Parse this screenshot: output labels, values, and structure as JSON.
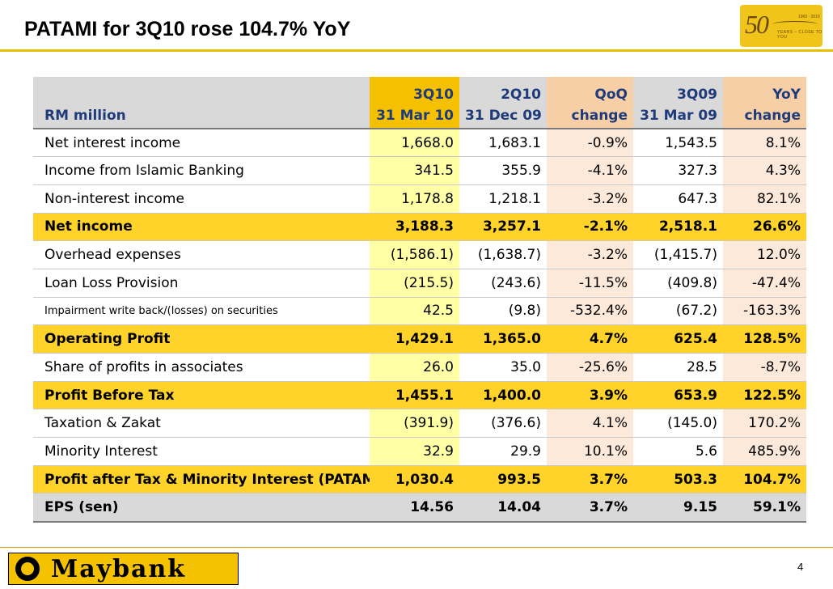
{
  "slide": {
    "title": "PATAMI for 3Q10 rose 104.7% YoY",
    "page_number": "4"
  },
  "logo_anniversary": {
    "number": "50",
    "years": "1960 - 2010",
    "tagline": "YEARS – CLOSE TO YOU"
  },
  "brand": {
    "name": "Maybank"
  },
  "colors": {
    "title_rule": "#e8c000",
    "header_blue": "#1f3b7a",
    "current_col": "#ffffa6",
    "change_col": "#fde9d9",
    "highlight_row": "#ffd32a",
    "eps_row": "#d9d9d9"
  },
  "table": {
    "header_row1": [
      "",
      "3Q10",
      "2Q10",
      "QoQ",
      "3Q09",
      "YoY"
    ],
    "header_row2": [
      "RM million",
      "31 Mar 10",
      "31 Dec 09",
      "change",
      "31 Mar 09",
      "change"
    ],
    "rows": [
      {
        "label": "Net interest income",
        "q3_10": "1,668.0",
        "q2_10": "1,683.1",
        "qoq": "-0.9%",
        "q3_09": "1,543.5",
        "yoy": "8.1%"
      },
      {
        "label": "Income from Islamic Banking",
        "q3_10": "341.5",
        "q2_10": "355.9",
        "qoq": "-4.1%",
        "q3_09": "327.3",
        "yoy": "4.3%"
      },
      {
        "label": "Non-interest income",
        "q3_10": "1,178.8",
        "q2_10": "1,218.1",
        "qoq": "-3.2%",
        "q3_09": "647.3",
        "yoy": "82.1%"
      },
      {
        "label": "Net income",
        "q3_10": "3,188.3",
        "q2_10": "3,257.1",
        "qoq": "-2.1%",
        "q3_09": "2,518.1",
        "yoy": "26.6%"
      },
      {
        "label": "Overhead expenses",
        "q3_10": "(1,586.1)",
        "q2_10": "(1,638.7)",
        "qoq": "-3.2%",
        "q3_09": "(1,415.7)",
        "yoy": "12.0%"
      },
      {
        "label": "Loan Loss Provision",
        "q3_10": "(215.5)",
        "q2_10": "(243.6)",
        "qoq": "-11.5%",
        "q3_09": "(409.8)",
        "yoy": "-47.4%"
      },
      {
        "label": "Impairment write back/(losses) on securities",
        "q3_10": "42.5",
        "q2_10": "(9.8)",
        "qoq": "-532.4%",
        "q3_09": "(67.2)",
        "yoy": "-163.3%"
      },
      {
        "label": "Operating Profit",
        "q3_10": "1,429.1",
        "q2_10": "1,365.0",
        "qoq": "4.7%",
        "q3_09": "625.4",
        "yoy": "128.5%"
      },
      {
        "label": "Share of profits in associates",
        "q3_10": "26.0",
        "q2_10": "35.0",
        "qoq": "-25.6%",
        "q3_09": "28.5",
        "yoy": "-8.7%"
      },
      {
        "label": "Profit Before Tax",
        "q3_10": "1,455.1",
        "q2_10": "1,400.0",
        "qoq": "3.9%",
        "q3_09": "653.9",
        "yoy": "122.5%"
      },
      {
        "label": "Taxation & Zakat",
        "q3_10": "(391.9)",
        "q2_10": "(376.6)",
        "qoq": "4.1%",
        "q3_09": "(145.0)",
        "yoy": "170.2%"
      },
      {
        "label": "Minority Interest",
        "q3_10": "32.9",
        "q2_10": "29.9",
        "qoq": "10.1%",
        "q3_09": "5.6",
        "yoy": "485.9%"
      },
      {
        "label": "Profit after Tax & Minority Interest (PATAMI",
        "q3_10": "1,030.4",
        "q2_10": "993.5",
        "qoq": "3.7%",
        "q3_09": "503.3",
        "yoy": "104.7%"
      },
      {
        "label": "EPS (sen)",
        "q3_10": "14.56",
        "q2_10": "14.04",
        "qoq": "3.7%",
        "q3_09": "9.15",
        "yoy": "59.1%"
      }
    ]
  }
}
